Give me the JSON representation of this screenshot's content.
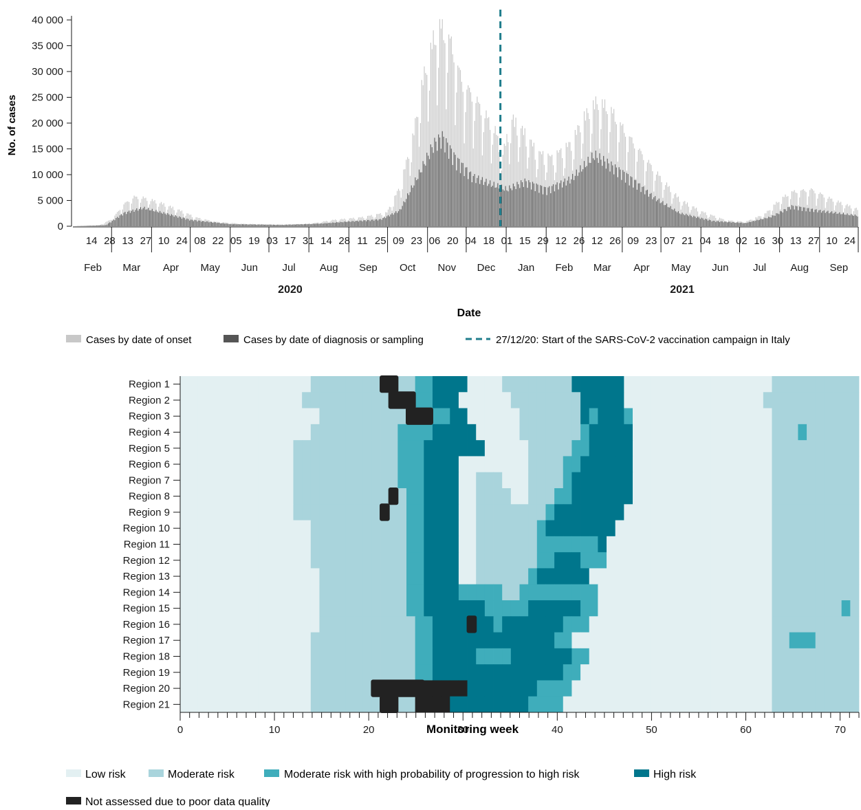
{
  "colors": {
    "onset": "#c8c8c8",
    "diagnosis": "#555555",
    "vaccine_line": "#1f7d8c",
    "axis": "#1a1a1a",
    "risk_low": "#e3f0f2",
    "risk_moderate": "#a9d4dc",
    "risk_moderate_high_prob": "#3fadbb",
    "risk_high": "#00768c",
    "risk_not_assessed": "#222222"
  },
  "chart_data": [
    {
      "type": "bar",
      "xlabel": "Date",
      "ylabel": "No. of cases",
      "ylim": [
        0,
        40000
      ],
      "yticks": [
        "0",
        "5 000",
        "10 000",
        "15 000",
        "20 000",
        "25 000",
        "30 000",
        "35 000",
        "40 000"
      ],
      "ytick_values": [
        0,
        5000,
        10000,
        15000,
        20000,
        25000,
        30000,
        35000,
        40000
      ],
      "day_ticks": [
        "14",
        "28",
        "13",
        "27",
        "10",
        "24",
        "08",
        "22",
        "05",
        "19",
        "03",
        "17",
        "31",
        "14",
        "28",
        "11",
        "25",
        "09",
        "23",
        "06",
        "20",
        "04",
        "18",
        "01",
        "15",
        "29",
        "12",
        "26",
        "12",
        "26",
        "09",
        "23",
        "07",
        "21",
        "04",
        "18",
        "02",
        "16",
        "30",
        "13",
        "27",
        "10",
        "24"
      ],
      "month_labels": [
        "Feb",
        "Mar",
        "Apr",
        "May",
        "Jun",
        "Jul",
        "Aug",
        "Sep",
        "Oct",
        "Nov",
        "Dec",
        "Jan",
        "Feb",
        "Mar",
        "Apr",
        "May",
        "Jun",
        "Jul",
        "Aug",
        "Sep"
      ],
      "year_labels": [
        "2020",
        "2021"
      ],
      "x_range": [
        "2020-01-31",
        "2021-09-30"
      ],
      "series": [
        {
          "name": "Cases by date of onset",
          "values": [
            [
              "2020-01-31",
              0
            ],
            [
              "2020-02-20",
              200
            ],
            [
              "2020-03-01",
              1500
            ],
            [
              "2020-03-10",
              4500
            ],
            [
              "2020-03-18",
              6000
            ],
            [
              "2020-03-25",
              5800
            ],
            [
              "2020-04-05",
              5000
            ],
            [
              "2020-04-20",
              3500
            ],
            [
              "2020-05-05",
              1800
            ],
            [
              "2020-05-20",
              900
            ],
            [
              "2020-06-10",
              500
            ],
            [
              "2020-07-10",
              350
            ],
            [
              "2020-08-01",
              500
            ],
            [
              "2020-08-20",
              1300
            ],
            [
              "2020-09-10",
              1800
            ],
            [
              "2020-09-30",
              2800
            ],
            [
              "2020-10-10",
              8000
            ],
            [
              "2020-10-20",
              18000
            ],
            [
              "2020-10-28",
              30000
            ],
            [
              "2020-11-05",
              38000
            ],
            [
              "2020-11-10",
              41000
            ],
            [
              "2020-11-18",
              38000
            ],
            [
              "2020-11-28",
              29000
            ],
            [
              "2020-12-05",
              27000
            ],
            [
              "2020-12-15",
              23000
            ],
            [
              "2020-12-24",
              19000
            ],
            [
              "2020-12-28",
              14000
            ],
            [
              "2021-01-05",
              22000
            ],
            [
              "2021-01-15",
              19000
            ],
            [
              "2021-01-25",
              15000
            ],
            [
              "2021-02-05",
              14000
            ],
            [
              "2021-02-20",
              17000
            ],
            [
              "2021-03-01",
              22000
            ],
            [
              "2021-03-12",
              25500
            ],
            [
              "2021-03-22",
              24000
            ],
            [
              "2021-04-01",
              20000
            ],
            [
              "2021-04-15",
              15000
            ],
            [
              "2021-04-30",
              10000
            ],
            [
              "2021-05-15",
              5500
            ],
            [
              "2021-06-01",
              3000
            ],
            [
              "2021-06-20",
              1200
            ],
            [
              "2021-07-05",
              900
            ],
            [
              "2021-07-20",
              2500
            ],
            [
              "2021-08-01",
              5500
            ],
            [
              "2021-08-10",
              7000
            ],
            [
              "2021-08-25",
              7500
            ],
            [
              "2021-09-10",
              5500
            ],
            [
              "2021-09-30",
              3500
            ]
          ]
        },
        {
          "name": "Cases by date of diagnosis or sampling",
          "values": [
            [
              "2020-01-31",
              0
            ],
            [
              "2020-02-25",
              200
            ],
            [
              "2020-03-10",
              2500
            ],
            [
              "2020-03-25",
              3500
            ],
            [
              "2020-04-10",
              2500
            ],
            [
              "2020-05-01",
              1200
            ],
            [
              "2020-06-01",
              400
            ],
            [
              "2020-07-10",
              250
            ],
            [
              "2020-08-10",
              500
            ],
            [
              "2020-09-01",
              900
            ],
            [
              "2020-09-25",
              1300
            ],
            [
              "2020-10-10",
              3000
            ],
            [
              "2020-10-25",
              10000
            ],
            [
              "2020-11-05",
              15500
            ],
            [
              "2020-11-12",
              17000
            ],
            [
              "2020-11-22",
              13000
            ],
            [
              "2020-12-05",
              9500
            ],
            [
              "2020-12-20",
              8000
            ],
            [
              "2021-01-01",
              7000
            ],
            [
              "2021-01-15",
              8500
            ],
            [
              "2021-02-01",
              7000
            ],
            [
              "2021-02-20",
              9000
            ],
            [
              "2021-03-10",
              13500
            ],
            [
              "2021-03-20",
              12000
            ],
            [
              "2021-04-05",
              9500
            ],
            [
              "2021-04-25",
              5500
            ],
            [
              "2021-05-15",
              2500
            ],
            [
              "2021-06-10",
              1000
            ],
            [
              "2021-07-05",
              600
            ],
            [
              "2021-07-25",
              1800
            ],
            [
              "2021-08-10",
              3800
            ],
            [
              "2021-08-30",
              3000
            ],
            [
              "2021-09-30",
              2000
            ]
          ]
        }
      ],
      "annotations": [
        {
          "date": "2020-12-27",
          "label": "27/12/20: Start of the SARS-CoV-2 vaccination campaign in Italy"
        }
      ],
      "legend": {
        "position": "bottom",
        "onset": "Cases by date of onset",
        "diagnosis": "Cases by date of diagnosis or sampling",
        "vaccine": "27/12/20: Start of the SARS-CoV-2 vaccination campaign in Italy"
      }
    },
    {
      "type": "heatmap",
      "xlabel": "Monitoring week",
      "xlim": [
        0,
        72
      ],
      "xticks": [
        "0",
        "10",
        "20",
        "30",
        "40",
        "50",
        "60",
        "70"
      ],
      "xtick_values": [
        0,
        10,
        20,
        30,
        40,
        50,
        60,
        70
      ],
      "regions": [
        "Region 1",
        "Region 2",
        "Region 3",
        "Region 4",
        "Region 5",
        "Region 6",
        "Region 7",
        "Region 8",
        "Region 9",
        "Region 10",
        "Region 11",
        "Region 12",
        "Region 13",
        "Region 14",
        "Region 15",
        "Region 16",
        "Region 17",
        "Region 18",
        "Region 19",
        "Region 20",
        "Region 21"
      ],
      "categories": [
        {
          "code": 0,
          "label": "Low risk"
        },
        {
          "code": 1,
          "label": "Moderate risk"
        },
        {
          "code": 2,
          "label": "Moderate risk with high probability of progression to high risk"
        },
        {
          "code": 3,
          "label": "High risk"
        },
        {
          "code": 4,
          "label": "Not assessed due to poor data quality"
        }
      ],
      "cells": [
        "000000000000000111111111111223333000011111111333333000000000000000001111111111",
        "000000000000001111111111112223330000001111111133333000000000000000011111111111",
        "000000000000000011111111111222233000000111111132333200000000000000001111111111",
        "000000000000000111111111122223333300000111111123333300000000000000001112111111",
        "000000000000011111111111122233333330000011111223333300000000000000001111111111",
        "000000000000011111111111122233330000000011112233333300000000000000001111111111",
        "000000000000011111111111122233330011100011112333333300000000000000001111111111",
        "000000000000011111111111112233330011110011122333333300000000000000001111111111",
        "000000000000011111111111112233330011111111233333333000000000000000001111111111",
        "000000000000000111111111112233330011111112333333330000000000000000001111111111",
        "000000000000000111111111112233330011111112222222300000000000000000001111111111",
        "000000000000000111111111112233330011111112233322200000000000000000001111111111",
        "000000000000000011111111112233330011111123333330000000000000000000001111111111",
        "000000000000000011111111112233332222211222222222000000000000000000001111111111",
        "000000000000000011111111112233333332222233333322000000000000000000001111111121",
        "000000000000000011111111111223333333233333332220000000000000000000001111111111",
        "000000000000000111111111111223333333333333322000000000000000000000001122211111",
        "000000000000000111111111111223333322223333333220000000000000000000001111111111",
        "000000000000000111111111111223333333333333332200000000000000000000001111111111",
        "000000000000000111111111111444444333333332222000000000000000000000001111111111",
        "000000000000000111111111111444433333333322220000000000000000000000001111111111"
      ],
      "overlays": [
        {
          "row": 0,
          "weeks": [
            23,
            24
          ]
        },
        {
          "row": 1,
          "weeks": [
            24,
            25,
            26
          ]
        },
        {
          "row": 2,
          "weeks": [
            26,
            27,
            28
          ]
        },
        {
          "row": 7,
          "weeks": [
            24
          ]
        },
        {
          "row": 8,
          "weeks": [
            23
          ]
        },
        {
          "row": 15,
          "weeks": [
            33
          ]
        },
        {
          "row": 19,
          "weeks": [
            22,
            23,
            24,
            25,
            26,
            27
          ]
        },
        {
          "row": 20,
          "weeks": [
            23,
            24
          ]
        }
      ],
      "legend": {
        "position": "bottom",
        "low": "Low risk",
        "moderate": "Moderate risk",
        "moderate_high_prob": "Moderate risk with high probability of progression to high risk",
        "high": "High risk",
        "not_assessed": "Not assessed due to poor data quality"
      }
    }
  ]
}
